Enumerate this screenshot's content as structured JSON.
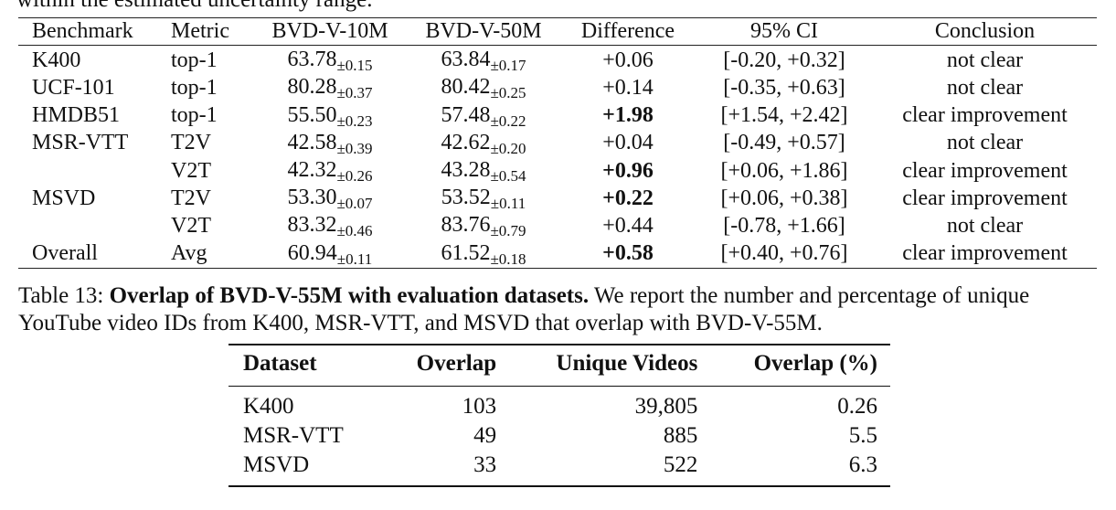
{
  "cut_text": "within the estimated uncertainty range.",
  "table12": {
    "headers": [
      "Benchmark",
      "Metric",
      "BVD-V-10M",
      "BVD-V-50M",
      "Difference",
      "95% CI",
      "Conclusion"
    ],
    "rows": [
      {
        "benchmark": "K400",
        "metric": "top-1",
        "v10m": "63.78",
        "v10m_pm": "±0.15",
        "v50m": "63.84",
        "v50m_pm": "±0.17",
        "diff": "+0.06",
        "ci": "[-0.20, +0.32]",
        "conclusion": "not clear"
      },
      {
        "benchmark": "UCF-101",
        "metric": "top-1",
        "v10m": "80.28",
        "v10m_pm": "±0.37",
        "v50m": "80.42",
        "v50m_pm": "±0.25",
        "diff": "+0.14",
        "ci": "[-0.35, +0.63]",
        "conclusion": "not clear"
      },
      {
        "benchmark": "HMDB51",
        "metric": "top-1",
        "v10m": "55.50",
        "v10m_pm": "±0.23",
        "v50m": "57.48",
        "v50m_pm": "±0.22",
        "diff": "+1.98",
        "ci": "[+1.54, +2.42]",
        "conclusion": "clear improvement"
      },
      {
        "benchmark": "MSR-VTT",
        "metric": "T2V",
        "v10m": "42.58",
        "v10m_pm": "±0.39",
        "v50m": "42.62",
        "v50m_pm": "±0.20",
        "diff": "+0.04",
        "ci": "[-0.49, +0.57]",
        "conclusion": "not clear"
      },
      {
        "benchmark": "",
        "metric": "V2T",
        "v10m": "42.32",
        "v10m_pm": "±0.26",
        "v50m": "43.28",
        "v50m_pm": "±0.54",
        "diff": "+0.96",
        "ci": "[+0.06, +1.86]",
        "conclusion": "clear improvement"
      },
      {
        "benchmark": "MSVD",
        "metric": "T2V",
        "v10m": "53.30",
        "v10m_pm": "±0.07",
        "v50m": "53.52",
        "v50m_pm": "±0.11",
        "diff": "+0.22",
        "ci": "[+0.06, +0.38]",
        "conclusion": "clear improvement"
      },
      {
        "benchmark": "",
        "metric": "V2T",
        "v10m": "83.32",
        "v10m_pm": "±0.46",
        "v50m": "83.76",
        "v50m_pm": "±0.79",
        "diff": "+0.44",
        "ci": "[-0.78, +1.66]",
        "conclusion": "not clear"
      },
      {
        "benchmark": "Overall",
        "metric": "Avg",
        "v10m": "60.94",
        "v10m_pm": "±0.11",
        "v50m": "61.52",
        "v50m_pm": "±0.18",
        "diff": "+0.58",
        "ci": "[+0.40, +0.76]",
        "conclusion": "clear improvement"
      }
    ]
  },
  "caption13": {
    "label": "Table 13: ",
    "title": "Overlap of BVD-V-55M with evaluation datasets.",
    "body": " We report the number and percentage of unique YouTube video IDs from K400, MSR-VTT, and MSVD that overlap with BVD-V-55M."
  },
  "table13": {
    "headers": [
      "Dataset",
      "Overlap",
      "Unique Videos",
      "Overlap (%)"
    ],
    "rows": [
      {
        "dataset": "K400",
        "overlap": "103",
        "unique": "39,805",
        "pct": "0.26"
      },
      {
        "dataset": "MSR-VTT",
        "overlap": "49",
        "unique": "885",
        "pct": "5.5"
      },
      {
        "dataset": "MSVD",
        "overlap": "33",
        "unique": "522",
        "pct": "6.3"
      }
    ]
  }
}
